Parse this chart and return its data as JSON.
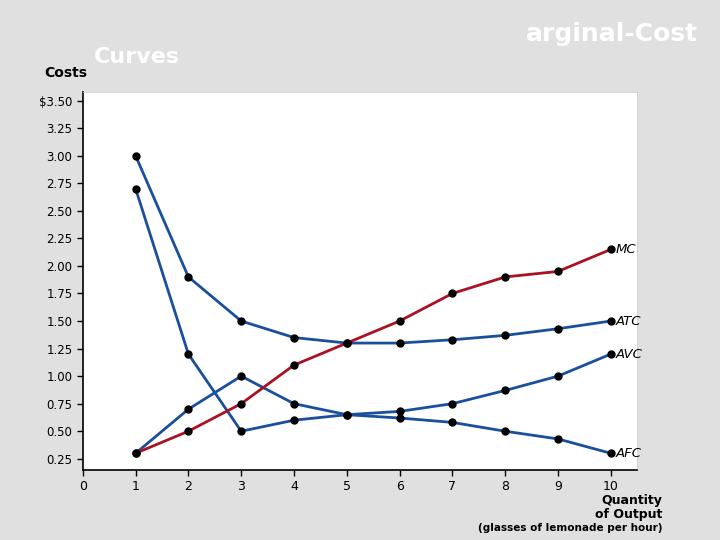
{
  "quantities": [
    1,
    2,
    3,
    4,
    5,
    6,
    7,
    8,
    9,
    10
  ],
  "ATC": [
    3.0,
    1.9,
    1.5,
    1.35,
    1.3,
    1.3,
    1.33,
    1.37,
    1.43,
    1.5
  ],
  "AVC": [
    0.3,
    0.7,
    1.0,
    0.75,
    0.65,
    0.68,
    0.75,
    0.87,
    1.0,
    1.2
  ],
  "AFC": [
    2.7,
    1.2,
    0.5,
    0.6,
    0.65,
    0.62,
    0.58,
    0.5,
    0.43,
    0.3
  ],
  "MC": [
    0.3,
    0.5,
    0.75,
    1.1,
    1.3,
    1.5,
    1.75,
    1.9,
    1.95,
    2.15
  ],
  "ytick_vals": [
    0.25,
    0.5,
    0.75,
    1.0,
    1.25,
    1.5,
    1.75,
    2.0,
    2.25,
    2.5,
    2.75,
    3.0,
    3.25,
    3.5
  ],
  "ytick_labels": [
    "0.25",
    "0.50",
    "0.75",
    "1.00",
    "1.25",
    "1.50",
    "1.75",
    "2.00",
    "2.25",
    "2.50",
    "2.75",
    "3.00",
    "3.25",
    "$3.50"
  ],
  "ylim_min": 0.15,
  "ylim_max": 3.58,
  "xlim_min": 0,
  "xlim_max": 10.5,
  "xticks": [
    0,
    1,
    2,
    3,
    4,
    5,
    6,
    7,
    8,
    9,
    10
  ],
  "blue_color": "#1A4F9C",
  "red_color": "#AA1122",
  "plot_bg": "#FFFFFF",
  "slide_bg": "#E0E0E0",
  "header_bg": "#1a1a1a",
  "header_text_color": "#FFFFFF",
  "label_MC": "MC",
  "label_ATC": "ATC",
  "label_AVC": "AVC",
  "label_AFC": "AFC",
  "ylabel_text": "Costs",
  "xlabel1": "Quantity",
  "xlabel2": "of Output",
  "xlabel3": "(glasses of lemonade per hour)"
}
